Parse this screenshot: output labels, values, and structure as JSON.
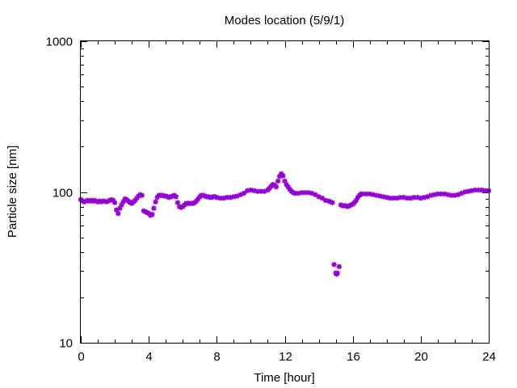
{
  "chart_data": {
    "type": "scatter",
    "title": "Modes location (5/9/1)",
    "xlabel": "Time [hour]",
    "ylabel": "Particle size [nm]",
    "xlim": [
      0,
      24
    ],
    "ylim": [
      10,
      1000
    ],
    "yscale": "log",
    "x_ticks": [
      0,
      4,
      8,
      12,
      16,
      20,
      24
    ],
    "x_tick_labels": [
      "0",
      "4",
      "8",
      "12",
      "16",
      "20",
      "24"
    ],
    "y_ticks": [
      10,
      100,
      1000
    ],
    "y_tick_labels": [
      "10",
      "100",
      "1000"
    ],
    "grid": false,
    "marker_color": "#9400d3",
    "marker": "star",
    "series": [
      {
        "points": [
          [
            0.0,
            89
          ],
          [
            0.1,
            87
          ],
          [
            0.2,
            86
          ],
          [
            0.3,
            87
          ],
          [
            0.4,
            88
          ],
          [
            0.5,
            87
          ],
          [
            0.6,
            88
          ],
          [
            0.7,
            87
          ],
          [
            0.8,
            88
          ],
          [
            0.9,
            87
          ],
          [
            1.0,
            86
          ],
          [
            1.1,
            87
          ],
          [
            1.2,
            86
          ],
          [
            1.3,
            87
          ],
          [
            1.4,
            87
          ],
          [
            1.5,
            86
          ],
          [
            1.6,
            87
          ],
          [
            1.7,
            88
          ],
          [
            1.8,
            89
          ],
          [
            1.9,
            88
          ],
          [
            2.0,
            85
          ],
          [
            2.1,
            76
          ],
          [
            2.2,
            72
          ],
          [
            2.3,
            78
          ],
          [
            2.4,
            82
          ],
          [
            2.5,
            86
          ],
          [
            2.6,
            90
          ],
          [
            2.7,
            89
          ],
          [
            2.8,
            87
          ],
          [
            2.9,
            85
          ],
          [
            3.0,
            84
          ],
          [
            3.1,
            86
          ],
          [
            3.2,
            88
          ],
          [
            3.3,
            91
          ],
          [
            3.4,
            94
          ],
          [
            3.5,
            96
          ],
          [
            3.6,
            95
          ],
          [
            3.7,
            75
          ],
          [
            3.8,
            74
          ],
          [
            3.9,
            73
          ],
          [
            4.0,
            72
          ],
          [
            4.1,
            70
          ],
          [
            4.2,
            71
          ],
          [
            4.3,
            78
          ],
          [
            4.4,
            86
          ],
          [
            4.5,
            92
          ],
          [
            4.6,
            95
          ],
          [
            4.7,
            95
          ],
          [
            4.8,
            95
          ],
          [
            4.9,
            94
          ],
          [
            5.0,
            94
          ],
          [
            5.1,
            93
          ],
          [
            5.2,
            92
          ],
          [
            5.3,
            93
          ],
          [
            5.4,
            94
          ],
          [
            5.5,
            95
          ],
          [
            5.6,
            93
          ],
          [
            5.7,
            85
          ],
          [
            5.8,
            80
          ],
          [
            5.9,
            79
          ],
          [
            6.0,
            80
          ],
          [
            6.1,
            82
          ],
          [
            6.2,
            84
          ],
          [
            6.3,
            84
          ],
          [
            6.4,
            84
          ],
          [
            6.5,
            84
          ],
          [
            6.6,
            84
          ],
          [
            6.7,
            85
          ],
          [
            6.8,
            87
          ],
          [
            6.9,
            90
          ],
          [
            7.0,
            93
          ],
          [
            7.1,
            95
          ],
          [
            7.2,
            95
          ],
          [
            7.3,
            94
          ],
          [
            7.4,
            93
          ],
          [
            7.5,
            93
          ],
          [
            7.6,
            92
          ],
          [
            7.7,
            92
          ],
          [
            7.8,
            93
          ],
          [
            7.9,
            93
          ],
          [
            8.0,
            92
          ],
          [
            8.2,
            91
          ],
          [
            8.4,
            91
          ],
          [
            8.6,
            92
          ],
          [
            8.8,
            92
          ],
          [
            9.0,
            93
          ],
          [
            9.2,
            94
          ],
          [
            9.4,
            96
          ],
          [
            9.6,
            98
          ],
          [
            9.8,
            102
          ],
          [
            10.0,
            103
          ],
          [
            10.2,
            102
          ],
          [
            10.4,
            101
          ],
          [
            10.6,
            101
          ],
          [
            10.8,
            101
          ],
          [
            11.0,
            103
          ],
          [
            11.1,
            106
          ],
          [
            11.2,
            109
          ],
          [
            11.3,
            112
          ],
          [
            11.4,
            111
          ],
          [
            11.5,
            108
          ],
          [
            11.6,
            118
          ],
          [
            11.7,
            127
          ],
          [
            11.8,
            132
          ],
          [
            11.9,
            128
          ],
          [
            12.0,
            118
          ],
          [
            12.1,
            112
          ],
          [
            12.2,
            108
          ],
          [
            12.3,
            104
          ],
          [
            12.4,
            101
          ],
          [
            12.5,
            99
          ],
          [
            12.6,
            98
          ],
          [
            12.8,
            98
          ],
          [
            13.0,
            99
          ],
          [
            13.2,
            99
          ],
          [
            13.4,
            99
          ],
          [
            13.6,
            98
          ],
          [
            13.8,
            96
          ],
          [
            14.0,
            93
          ],
          [
            14.2,
            91
          ],
          [
            14.4,
            88
          ],
          [
            14.6,
            87
          ],
          [
            14.7,
            86
          ],
          [
            14.8,
            85
          ],
          [
            14.9,
            33
          ],
          [
            15.0,
            29
          ],
          [
            15.05,
            28.5
          ],
          [
            15.1,
            29
          ],
          [
            15.2,
            32
          ],
          [
            15.3,
            82
          ],
          [
            15.4,
            81
          ],
          [
            15.5,
            81
          ],
          [
            15.6,
            81
          ],
          [
            15.7,
            80
          ],
          [
            15.8,
            81
          ],
          [
            15.9,
            82
          ],
          [
            16.0,
            83
          ],
          [
            16.1,
            85
          ],
          [
            16.2,
            88
          ],
          [
            16.3,
            92
          ],
          [
            16.4,
            95
          ],
          [
            16.5,
            97
          ],
          [
            16.6,
            97
          ],
          [
            16.8,
            97
          ],
          [
            17.0,
            97
          ],
          [
            17.2,
            96
          ],
          [
            17.4,
            95
          ],
          [
            17.6,
            94
          ],
          [
            17.8,
            93
          ],
          [
            18.0,
            92
          ],
          [
            18.2,
            91
          ],
          [
            18.4,
            91
          ],
          [
            18.6,
            91
          ],
          [
            18.8,
            92
          ],
          [
            19.0,
            92
          ],
          [
            19.2,
            91
          ],
          [
            19.4,
            91
          ],
          [
            19.6,
            92
          ],
          [
            19.8,
            92
          ],
          [
            20.0,
            91
          ],
          [
            20.2,
            92
          ],
          [
            20.4,
            93
          ],
          [
            20.6,
            95
          ],
          [
            20.8,
            96
          ],
          [
            21.0,
            97
          ],
          [
            21.2,
            97
          ],
          [
            21.4,
            97
          ],
          [
            21.6,
            96
          ],
          [
            21.8,
            95
          ],
          [
            22.0,
            95
          ],
          [
            22.2,
            96
          ],
          [
            22.4,
            98
          ],
          [
            22.6,
            100
          ],
          [
            22.8,
            101
          ],
          [
            23.0,
            102
          ],
          [
            23.2,
            103
          ],
          [
            23.4,
            103
          ],
          [
            23.6,
            103
          ],
          [
            23.8,
            102
          ],
          [
            24.0,
            102
          ]
        ]
      }
    ]
  }
}
